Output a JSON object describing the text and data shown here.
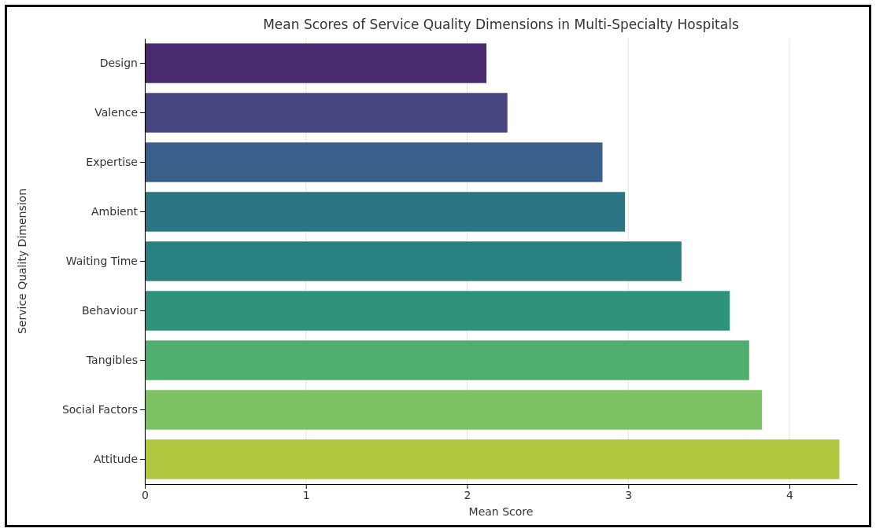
{
  "chart_data": {
    "type": "bar",
    "orientation": "horizontal",
    "title": "Mean Scores of Service Quality Dimensions in Multi-Specialty Hospitals",
    "xlabel": "Mean Score",
    "ylabel": "Service Quality Dimension",
    "categories": [
      "Design",
      "Valence",
      "Expertise",
      "Ambient",
      "Waiting Time",
      "Behaviour",
      "Tangibles",
      "Social Factors",
      "Attitude"
    ],
    "values": [
      2.12,
      2.25,
      2.84,
      2.98,
      3.33,
      3.63,
      3.75,
      3.83,
      4.31
    ],
    "colors": [
      "#4a2a6e",
      "#46457f",
      "#3a5f8a",
      "#2c7584",
      "#288080",
      "#2e9379",
      "#4fae6e",
      "#7cc163",
      "#b0c73f"
    ],
    "xlim": [
      0,
      4.42
    ],
    "xticks": [
      0,
      1,
      2,
      3,
      4
    ],
    "grid": "x"
  }
}
